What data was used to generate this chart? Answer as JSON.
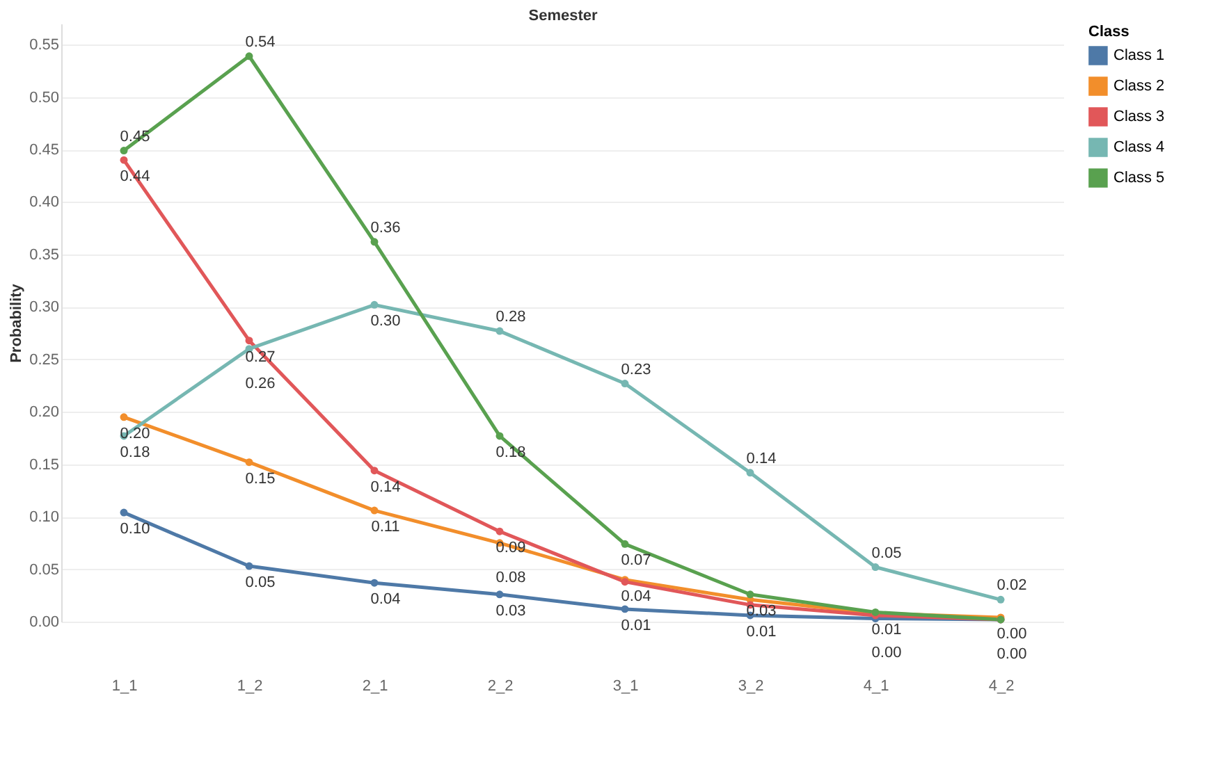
{
  "chart_data": {
    "type": "line",
    "xlabel": "Semester",
    "ylabel": "Probability",
    "legend_title": "Class",
    "categories": [
      "1_1",
      "1_2",
      "2_1",
      "2_2",
      "3_1",
      "3_2",
      "4_1",
      "4_2"
    ],
    "series": [
      {
        "name": "Class 1",
        "color": "#4e79a7",
        "values": [
          0.104,
          0.053,
          0.037,
          0.026,
          0.012,
          0.006,
          0.003,
          0.002
        ],
        "value_labels": [
          "0.10",
          "0.05",
          "0.04",
          "0.03",
          "0.01",
          "0.01",
          "0.00",
          "0.00"
        ]
      },
      {
        "name": "Class 2",
        "color": "#f28e2b",
        "values": [
          0.195,
          0.152,
          0.106,
          0.075,
          0.04,
          0.021,
          0.008,
          0.004
        ],
        "value_labels": [
          "0.20",
          "0.15",
          "0.11",
          "0.08",
          "0.04",
          null,
          "0.01",
          "0.00"
        ]
      },
      {
        "name": "Class 3",
        "color": "#e15759",
        "values": [
          0.44,
          0.268,
          0.144,
          0.086,
          0.038,
          0.016,
          0.006,
          0.002
        ],
        "value_labels": [
          "0.44",
          "0.27",
          "0.14",
          "0.09",
          null,
          null,
          null,
          null
        ]
      },
      {
        "name": "Class 4",
        "color": "#76b7b2",
        "values": [
          0.177,
          0.26,
          0.302,
          0.277,
          0.227,
          0.142,
          0.052,
          0.021
        ],
        "value_labels": [
          "0.18",
          "0.26",
          "0.30",
          "0.28",
          "0.23",
          "0.14",
          "0.05",
          "0.02"
        ]
      },
      {
        "name": "Class 5",
        "color": "#59a14f",
        "values": [
          0.449,
          0.539,
          0.362,
          0.177,
          0.074,
          0.026,
          0.009,
          0.002
        ],
        "value_labels": [
          "0.45",
          "0.54",
          "0.36",
          "0.18",
          "0.07",
          "0.03",
          null,
          null
        ]
      }
    ],
    "ylim": [
      0,
      0.57
    ],
    "yticks": [
      {
        "value": 0,
        "label": "0.00"
      },
      {
        "value": 0.05,
        "label": "0.05"
      },
      {
        "value": 0.1,
        "label": "0.10"
      },
      {
        "value": 0.15,
        "label": "0.15"
      },
      {
        "value": 0.2,
        "label": "0.20"
      },
      {
        "value": 0.25,
        "label": "0.25"
      },
      {
        "value": 0.3,
        "label": "0.30"
      },
      {
        "value": 0.35,
        "label": "0.35"
      },
      {
        "value": 0.4,
        "label": "0.40"
      },
      {
        "value": 0.45,
        "label": "0.45"
      },
      {
        "value": 0.5,
        "label": "0.50"
      },
      {
        "value": 0.55,
        "label": "0.55"
      }
    ],
    "grid": "y",
    "legend": "top right",
    "marker": "circle",
    "line_style": "solid"
  }
}
